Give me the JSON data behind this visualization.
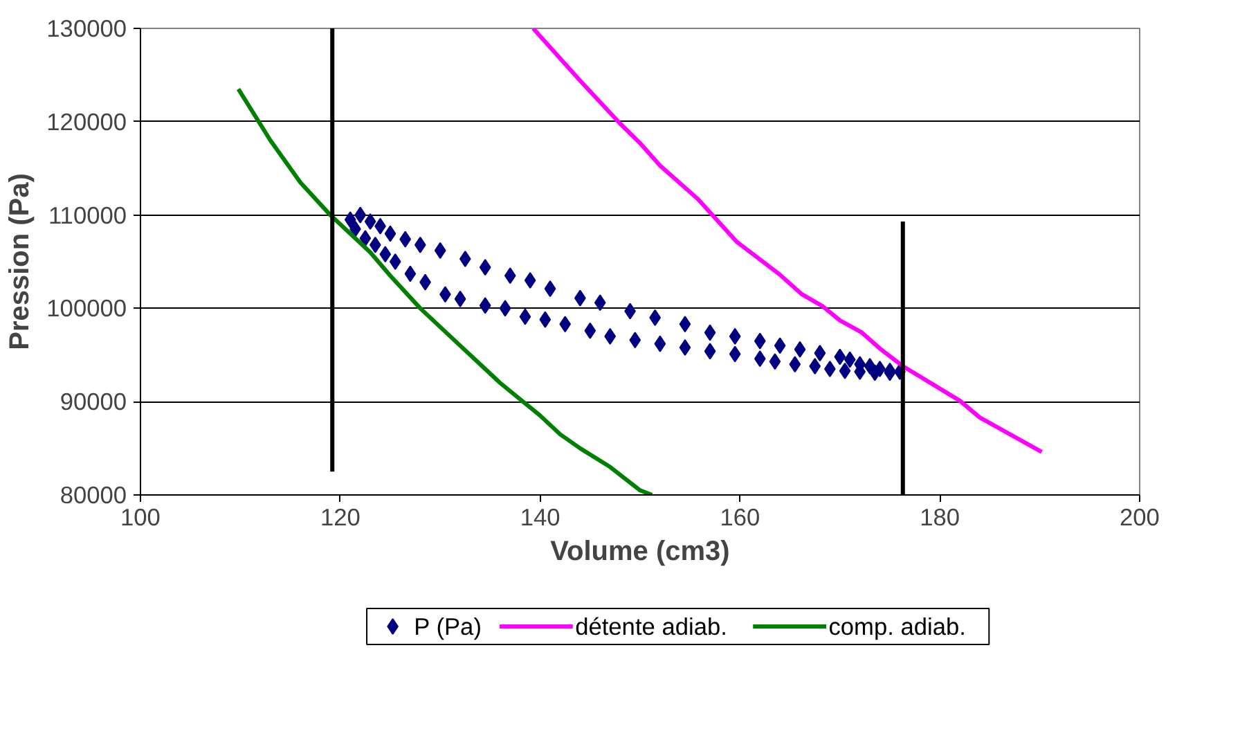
{
  "chart_data": {
    "type": "scatter",
    "xlabel": "Volume (cm3)",
    "ylabel": "Pression (Pa)",
    "xlim": [
      100,
      200
    ],
    "xticks": [
      100,
      120,
      140,
      160,
      180,
      200
    ],
    "ylim": [
      80000,
      130000
    ],
    "yticks": [
      80000,
      90000,
      100000,
      110000,
      120000,
      130000
    ],
    "grid": "y",
    "legend": "bottom",
    "series": [
      {
        "name": "P (Pa)",
        "marker": "diamond",
        "color": "#000080",
        "x": [
          121,
          122,
          123,
          124,
          125,
          126.5,
          128,
          130,
          132.5,
          134.5,
          137,
          139,
          141,
          144,
          146,
          149,
          151.5,
          154.5,
          157,
          159.5,
          162,
          164,
          166,
          168,
          170,
          171,
          172,
          173,
          174,
          175,
          121.5,
          122.5,
          123.5,
          124.5,
          125.5,
          127,
          128.5,
          130.5,
          132,
          134.5,
          136.5,
          138.5,
          140.5,
          142.5,
          145,
          147,
          149.5,
          152,
          154.5,
          157,
          159.5,
          162,
          163.5,
          165.5,
          167.5,
          169,
          170.5,
          172,
          173.5,
          175,
          176
        ],
        "values": [
          109500,
          110000,
          109300,
          108800,
          108000,
          107400,
          106800,
          106200,
          105300,
          104400,
          103500,
          103000,
          102100,
          101100,
          100600,
          99700,
          99000,
          98300,
          97400,
          97000,
          96500,
          96000,
          95600,
          95200,
          94800,
          94500,
          94000,
          93800,
          93500,
          93300,
          108500,
          107500,
          106800,
          105800,
          105000,
          103700,
          102800,
          101500,
          101000,
          100300,
          100000,
          99100,
          98800,
          98300,
          97600,
          97000,
          96600,
          96200,
          95800,
          95400,
          95100,
          94600,
          94300,
          94000,
          93800,
          93500,
          93300,
          93200,
          93100,
          93100,
          93200
        ]
      },
      {
        "name": "détente adiab.",
        "type": "line",
        "color": "#ff00ff",
        "x": [
          139.3,
          144,
          148,
          150,
          152,
          154,
          155.8,
          159.7,
          161.8,
          164,
          166.2,
          168.3,
          170,
          172.2,
          174.1,
          176.3,
          180,
          182,
          184,
          190.2
        ],
        "values": [
          130000,
          124400,
          119800,
          117700,
          115300,
          113400,
          111700,
          107100,
          105400,
          103600,
          101500,
          100200,
          98700,
          97400,
          95600,
          93800,
          91400,
          90100,
          88300,
          84600
        ]
      },
      {
        "name": "comp. adiab.",
        "type": "line",
        "color": "#008000",
        "x": [
          109.8,
          113,
          116,
          119,
          121,
          123,
          125,
          128,
          130,
          132,
          134,
          136,
          140,
          142,
          144,
          147,
          150,
          151.2
        ],
        "values": [
          123500,
          118000,
          113500,
          110000,
          108000,
          106000,
          103500,
          100000,
          98000,
          96000,
          94000,
          92000,
          88500,
          86500,
          85000,
          83000,
          80500,
          80000
        ]
      },
      {
        "type": "line",
        "color": "#000000",
        "x": [
          119.2,
          119.2
        ],
        "values": [
          82500,
          130000
        ]
      },
      {
        "type": "line",
        "color": "#000000",
        "x": [
          176.3,
          176.3
        ],
        "values": [
          80000,
          109300
        ]
      }
    ]
  }
}
